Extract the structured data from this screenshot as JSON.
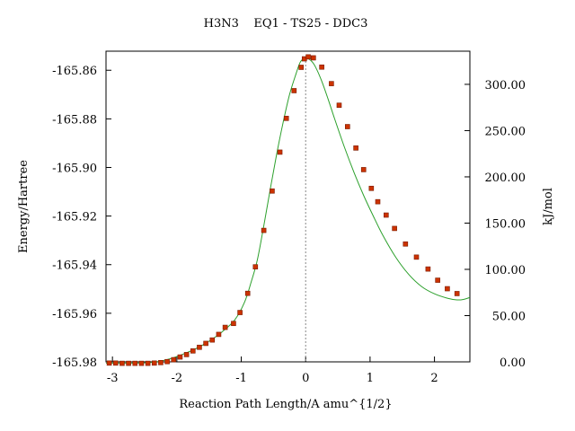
{
  "chart_data": {
    "type": "line",
    "title": "H3N3    EQ1 - TS25 - DDC3",
    "xlabel": "Reaction Path Length/A amu^{1/2}",
    "ylabel": "Energy/Hartree",
    "y2label": "kJ/mol",
    "xlim": [
      -3.1,
      2.55
    ],
    "ylim": [
      -165.98,
      -165.854
    ],
    "y2lim": [
      0,
      331
    ],
    "x_ticks": [
      -3,
      -2,
      -1,
      0,
      1,
      2
    ],
    "y_ticks": [
      -165.98,
      -165.96,
      -165.94,
      -165.92,
      -165.9,
      -165.88,
      -165.86
    ],
    "y_tick_labels": [
      "-165.98",
      "-165.96",
      "-165.94",
      "-165.92",
      "-165.90",
      "-165.88",
      "-165.86"
    ],
    "y2_ticks": [
      0,
      50,
      100,
      150,
      200,
      250,
      300
    ],
    "y2_tick_labels": [
      "0.00",
      "50.00",
      "100.00",
      "150.00",
      "200.00",
      "250.00",
      "300.00"
    ],
    "ts_marker_x": 0,
    "colors": {
      "curve": "#2ca02c",
      "points": "#cc3300",
      "ts_line": "#888888",
      "axes": "#000000"
    },
    "grid": false,
    "legend": "none",
    "curve": {
      "x": [
        -3.1,
        -2.8,
        -2.5,
        -2.3,
        -2.1,
        -1.9,
        -1.7,
        -1.5,
        -1.3,
        -1.1,
        -0.95,
        -0.85,
        -0.75,
        -0.65,
        -0.55,
        -0.45,
        -0.35,
        -0.25,
        -0.15,
        -0.08,
        0.0,
        0.08,
        0.15,
        0.25,
        0.35,
        0.45,
        0.6,
        0.75,
        0.9,
        1.05,
        1.2,
        1.4,
        1.6,
        1.8,
        2.0,
        2.2,
        2.35,
        2.45,
        2.55
      ],
      "y": [
        -165.9805,
        -165.9805,
        -165.9804,
        -165.9799,
        -165.9787,
        -165.9768,
        -165.9745,
        -165.9715,
        -165.9677,
        -165.9627,
        -165.9555,
        -165.9475,
        -165.938,
        -165.924,
        -165.909,
        -165.8945,
        -165.8815,
        -165.87,
        -165.8615,
        -165.8565,
        -165.855,
        -165.856,
        -165.8585,
        -165.8645,
        -165.872,
        -165.88,
        -165.8915,
        -165.902,
        -165.9115,
        -165.92,
        -165.928,
        -165.937,
        -165.944,
        -165.949,
        -165.952,
        -165.9538,
        -165.9545,
        -165.9543,
        -165.9535
      ]
    },
    "points": {
      "x": [
        -3.05,
        -2.95,
        -2.85,
        -2.75,
        -2.65,
        -2.55,
        -2.45,
        -2.35,
        -2.25,
        -2.15,
        -2.05,
        -1.95,
        -1.85,
        -1.75,
        -1.65,
        -1.55,
        -1.45,
        -1.35,
        -1.25,
        -1.12,
        -1.02,
        -0.9,
        -0.78,
        -0.65,
        -0.52,
        -0.4,
        -0.3,
        -0.18,
        -0.07,
        -0.02,
        0.04,
        0.12,
        0.25,
        0.4,
        0.52,
        0.65,
        0.78,
        0.9,
        1.02,
        1.12,
        1.25,
        1.38,
        1.55,
        1.72,
        1.9,
        2.05,
        2.2,
        2.35
      ],
      "y": [
        -165.9805,
        -165.9805,
        -165.9806,
        -165.9806,
        -165.9806,
        -165.9806,
        -165.9806,
        -165.9805,
        -165.9803,
        -165.9799,
        -165.9791,
        -165.978,
        -165.977,
        -165.9755,
        -165.974,
        -165.9724,
        -165.971,
        -165.9687,
        -165.9658,
        -165.9642,
        -165.9597,
        -165.9518,
        -165.9409,
        -165.9259,
        -165.9097,
        -165.8937,
        -165.8798,
        -165.8684,
        -165.8588,
        -165.8553,
        -165.8545,
        -165.8549,
        -165.8587,
        -165.8655,
        -165.8744,
        -165.8832,
        -165.892,
        -165.9009,
        -165.9086,
        -165.9141,
        -165.9196,
        -165.9251,
        -165.9315,
        -165.9369,
        -165.9418,
        -165.9464,
        -165.9499,
        -165.9519
      ]
    }
  }
}
